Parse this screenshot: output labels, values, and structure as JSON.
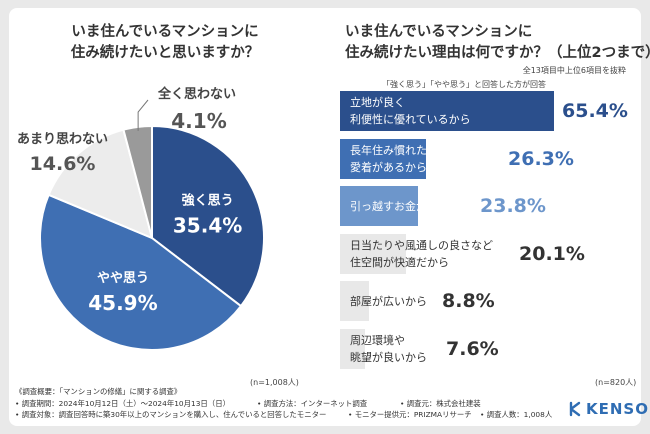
{
  "left_title": [
    "いま住んでいるマンションに",
    "住み続けたいと思いますか？"
  ],
  "right_title": [
    "いま住んでいるマンションに",
    "住み続けたい理由は何ですか？（上位2つまで）"
  ],
  "right_note1": "全13項目中上位6項目を抜粋",
  "right_note2": "「強く思う」「やや思う」と回答した方が回答",
  "left_n": "(n=1,008人)",
  "right_n": "(n=820人)",
  "colors": {
    "pie": [
      "#2b4f8c",
      "#3f6fb3",
      "#ececec",
      "#9a9a9a"
    ],
    "bars": [
      "#2b4f8c",
      "#3f6fb3",
      "#6d96cb",
      "#e8e8e8",
      "#e8e8e8",
      "#e8e8e8"
    ],
    "bar_values": [
      "#2b4f8c",
      "#3f6fb3",
      "#6d96cb",
      "#333333",
      "#333333",
      "#333333"
    ],
    "logo": "#2f6db3"
  },
  "chart_data": [
    {
      "type": "pie",
      "title": "いま住んでいるマンションに住み続けたいと思いますか？",
      "categories": [
        "強く思う",
        "やや思う",
        "あまり思わない",
        "全く思わない"
      ],
      "values": [
        35.4,
        45.9,
        14.6,
        4.1
      ],
      "value_labels": [
        "35.4%",
        "45.9%",
        "14.6%",
        "4.1%"
      ]
    },
    {
      "type": "bar",
      "title": "いま住んでいるマンションに住み続けたい理由は何ですか？（上位2つまで）",
      "categories": [
        [
          "立地が良く",
          "利便性に優れているから"
        ],
        [
          "長年住み慣れた環境への",
          "愛着があるから"
        ],
        [
          "引っ越すお金がないから"
        ],
        [
          "日当たりや風通しの良さなど",
          "住空間が快適だから"
        ],
        [
          "部屋が広いから"
        ],
        [
          "周辺環境や",
          "眺望が良いから"
        ]
      ],
      "values": [
        65.4,
        26.3,
        23.8,
        20.1,
        8.8,
        7.6
      ],
      "value_labels": [
        "65.4%",
        "26.3%",
        "23.8%",
        "20.1%",
        "8.8%",
        "7.6%"
      ]
    }
  ],
  "footer": {
    "line1": "《調査概要：「マンションの修繕」に関する調査》",
    "line2": [
      "• 調査期間：2024年10月12日（土）～2024年10月13日（日）",
      "• 調査方法：インターネット調査",
      "• 調査元：株式会社建装"
    ],
    "line3": [
      "• 調査対象：調査回答時に築30年以上のマンションを購入し、住んでいると回答したモニター",
      "• モニター提供元：PRIZMAリサーチ",
      "• 調査人数：1,008人"
    ]
  },
  "logo": {
    "text": "KENSOU",
    "icon": "kensou-logo-icon"
  }
}
